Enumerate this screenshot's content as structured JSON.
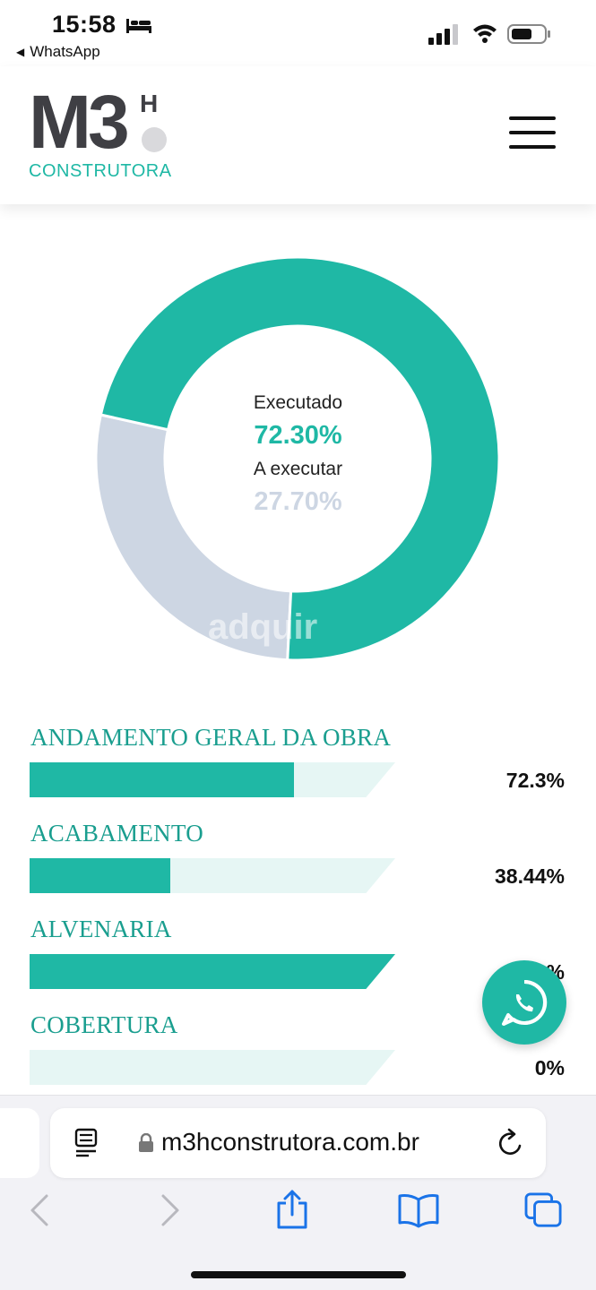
{
  "status_bar": {
    "time": "15:58",
    "back_app": "WhatsApp",
    "icons": [
      "bed-icon",
      "signal-icon",
      "wifi-icon",
      "battery-icon"
    ]
  },
  "header": {
    "logo_mark": "M3",
    "logo_superscript": "H",
    "logo_subtitle": "CONSTRUTORA",
    "menu_icon": "hamburger-menu-icon"
  },
  "donut": {
    "executed_label": "Executado",
    "executed_value": "72.30%",
    "executed_fraction": 0.723,
    "remaining_label": "A executar",
    "remaining_value": "27.70%",
    "remaining_fraction": 0.277,
    "watermark": "adquir",
    "colors": {
      "executed": "#1fb8a5",
      "remaining": "#cdd6e3"
    }
  },
  "progress_items": [
    {
      "title": "ANDAMENTO GERAL DA OBRA",
      "percent_label": "72.3%",
      "fraction": 0.723
    },
    {
      "title": "ACABAMENTO",
      "percent_label": "38.44%",
      "fraction": 0.3844
    },
    {
      "title": "ALVENARIA",
      "percent_label": "%",
      "fraction": 1.0
    },
    {
      "title": "COBERTURA",
      "percent_label": "0%",
      "fraction": 0.0
    }
  ],
  "floating": {
    "icon": "whatsapp-icon"
  },
  "browser": {
    "url": "m3hconstrutora.com.br",
    "icons": [
      "reader-icon",
      "lock-icon",
      "reload-icon",
      "back-arrow-icon",
      "forward-arrow-icon",
      "share-icon",
      "bookmarks-icon",
      "tabs-icon"
    ]
  },
  "colors": {
    "accent": "#1fb8a5",
    "track": "#e6f6f4",
    "dark": "#3f3f44"
  }
}
